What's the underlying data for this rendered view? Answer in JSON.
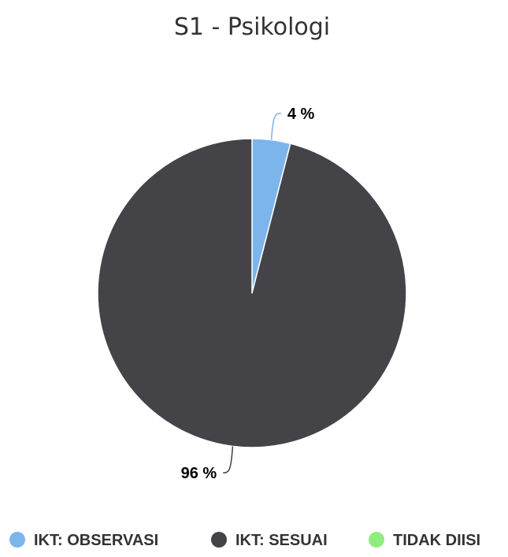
{
  "chart_data": {
    "type": "pie",
    "title": "S1 - Psikologi",
    "slices": [
      {
        "name": "IKT: OBSERVASI",
        "value": 4,
        "label": "4 %",
        "color": "#7cb5ec"
      },
      {
        "name": "IKT: SESUAI",
        "value": 96,
        "label": "96 %",
        "color": "#434348"
      },
      {
        "name": "TIDAK DIISI",
        "value": 0,
        "label": "",
        "color": "#90ed7d"
      }
    ],
    "legend": "bottom"
  }
}
